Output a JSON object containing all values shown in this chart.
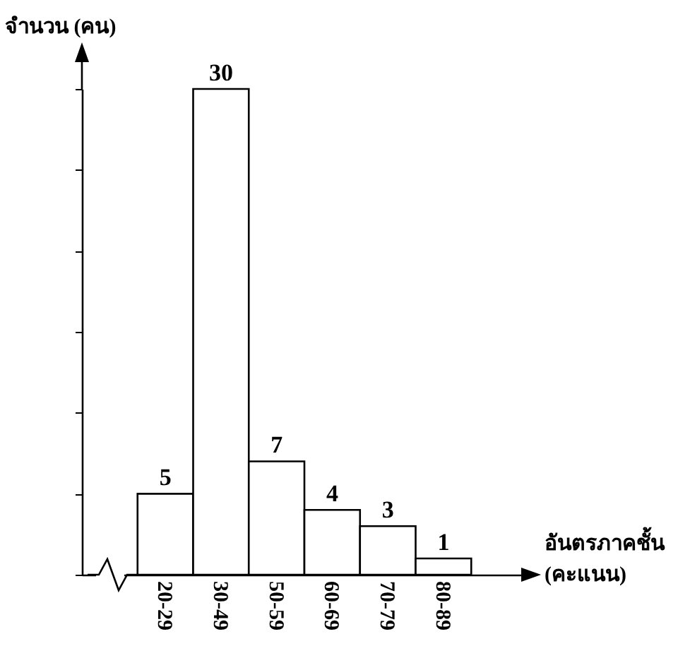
{
  "chart_data": {
    "type": "bar",
    "xlabel": "อันตรภาคชั้น (คะแนน)",
    "ylabel": "จำนวน (คน)",
    "categories": [
      "20-29",
      "30-49",
      "50-59",
      "60-69",
      "70-79",
      "80-89"
    ],
    "values": [
      5,
      30,
      7,
      4,
      3,
      1
    ],
    "data_labels": true
  }
}
